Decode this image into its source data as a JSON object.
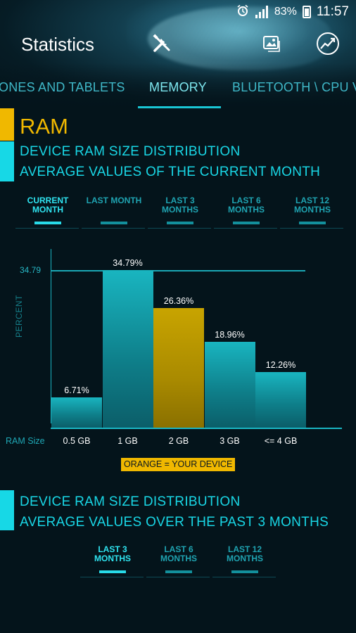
{
  "status_bar": {
    "battery": "83%",
    "time": "11:57",
    "icons": [
      "alarm-icon",
      "signal-icon",
      "battery-icon"
    ]
  },
  "app_bar": {
    "title": "Statistics",
    "actions": [
      "tools-icon",
      "image-share-icon",
      "chart-trend-icon"
    ]
  },
  "tabs": [
    {
      "label": "ONES AND TABLETS",
      "active": false
    },
    {
      "label": "MEMORY",
      "active": true
    },
    {
      "label": "BLUETOOTH \\ CPU V",
      "active": false
    }
  ],
  "section1": {
    "category": "RAM",
    "line1": "DEVICE RAM SIZE DISTRIBUTION",
    "line2": "AVERAGE VALUES OF THE CURRENT MONTH",
    "periods": [
      {
        "label": "CURRENT\nMONTH",
        "active": true
      },
      {
        "label": "LAST MONTH",
        "active": false
      },
      {
        "label": "LAST 3\nMONTHS",
        "active": false
      },
      {
        "label": "LAST 6\nMONTHS",
        "active": false
      },
      {
        "label": "LAST 12\nMONTHS",
        "active": false
      }
    ]
  },
  "chart_data": {
    "type": "bar",
    "ylabel": "PERCENT",
    "xlabel": "RAM Size",
    "max_label": "34.79",
    "categories": [
      "0.5 GB",
      "1 GB",
      "2 GB",
      "3 GB",
      "<= 4 GB"
    ],
    "values": [
      6.71,
      34.79,
      26.36,
      18.96,
      12.26
    ],
    "value_labels": [
      "6.71%",
      "34.79%",
      "26.36%",
      "18.96%",
      "12.26%"
    ],
    "highlight_index": 2,
    "colors": {
      "bar": "#13a3b0",
      "highlight": "#c8a400"
    },
    "legend": "ORANGE = YOUR DEVICE"
  },
  "section2": {
    "line1": "DEVICE RAM SIZE DISTRIBUTION",
    "line2": "AVERAGE VALUES OVER THE PAST 3 MONTHS",
    "periods": [
      {
        "label": "LAST 3\nMONTHS",
        "active": true
      },
      {
        "label": "LAST 6\nMONTHS",
        "active": false
      },
      {
        "label": "LAST 12\nMONTHS",
        "active": false
      }
    ]
  }
}
